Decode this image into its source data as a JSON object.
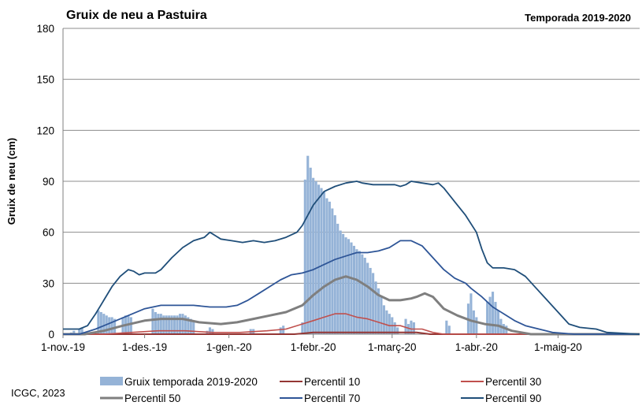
{
  "title": "Gruix de neu a Pastuira",
  "season": "Temporada 2019-2020",
  "credit": "ICGC, 2023",
  "chart_data": {
    "type": "bar",
    "title": "Gruix de neu a Pastuira",
    "subtitle": "Temporada 2019-2020",
    "ylabel": "Gruix de neu (cm)",
    "xlabel": "",
    "ylim": [
      0,
      180
    ],
    "yticks": [
      0,
      30,
      60,
      90,
      120,
      150,
      180
    ],
    "xlim_days": [
      0,
      212
    ],
    "xticks": [
      {
        "day": 0,
        "label": "1-nov.-19"
      },
      {
        "day": 30,
        "label": "1-des.-19"
      },
      {
        "day": 61,
        "label": "1-gen.-20"
      },
      {
        "day": 92,
        "label": "1-febr.-20"
      },
      {
        "day": 121,
        "label": "1-març-20"
      },
      {
        "day": 152,
        "label": "1-abr.-20"
      },
      {
        "day": 182,
        "label": "1-maig-20"
      }
    ],
    "grid": "horizontal",
    "legend_position": "bottom",
    "colors": {
      "bars": "#95b3d7",
      "p10": "#943634",
      "p30": "#c0504d",
      "p50": "#7f7f7f",
      "p70": "#2e5597",
      "p90": "#1f4e79"
    },
    "legend": [
      {
        "label": "Gruix temporada 2019-2020",
        "key": "bars"
      },
      {
        "label": "Percentil 10",
        "key": "p10"
      },
      {
        "label": "Percentil 30",
        "key": "p30"
      },
      {
        "label": "Percentil 50",
        "key": "p50"
      },
      {
        "label": "Percentil 70",
        "key": "p70"
      },
      {
        "label": "Percentil 90",
        "key": "p90"
      }
    ],
    "bars": [
      {
        "day": 3,
        "value": 1
      },
      {
        "day": 4,
        "value": 2
      },
      {
        "day": 6,
        "value": 3
      },
      {
        "day": 7,
        "value": 4
      },
      {
        "day": 13,
        "value": 14
      },
      {
        "day": 14,
        "value": 13
      },
      {
        "day": 15,
        "value": 12
      },
      {
        "day": 16,
        "value": 11
      },
      {
        "day": 17,
        "value": 10
      },
      {
        "day": 18,
        "value": 10
      },
      {
        "day": 19,
        "value": 9
      },
      {
        "day": 22,
        "value": 10
      },
      {
        "day": 23,
        "value": 11
      },
      {
        "day": 24,
        "value": 11
      },
      {
        "day": 25,
        "value": 10
      },
      {
        "day": 33,
        "value": 15
      },
      {
        "day": 34,
        "value": 13
      },
      {
        "day": 35,
        "value": 12
      },
      {
        "day": 36,
        "value": 12
      },
      {
        "day": 37,
        "value": 11
      },
      {
        "day": 38,
        "value": 11
      },
      {
        "day": 39,
        "value": 11
      },
      {
        "day": 40,
        "value": 11
      },
      {
        "day": 41,
        "value": 11
      },
      {
        "day": 42,
        "value": 11
      },
      {
        "day": 43,
        "value": 12
      },
      {
        "day": 44,
        "value": 12
      },
      {
        "day": 45,
        "value": 11
      },
      {
        "day": 46,
        "value": 10
      },
      {
        "day": 47,
        "value": 9
      },
      {
        "day": 48,
        "value": 8
      },
      {
        "day": 53,
        "value": 2
      },
      {
        "day": 54,
        "value": 4
      },
      {
        "day": 55,
        "value": 3
      },
      {
        "day": 69,
        "value": 3
      },
      {
        "day": 70,
        "value": 3
      },
      {
        "day": 80,
        "value": 4
      },
      {
        "day": 81,
        "value": 5
      },
      {
        "day": 88,
        "value": 7
      },
      {
        "day": 89,
        "value": 91
      },
      {
        "day": 90,
        "value": 105
      },
      {
        "day": 91,
        "value": 98
      },
      {
        "day": 92,
        "value": 92
      },
      {
        "day": 93,
        "value": 90
      },
      {
        "day": 94,
        "value": 88
      },
      {
        "day": 95,
        "value": 86
      },
      {
        "day": 96,
        "value": 84
      },
      {
        "day": 97,
        "value": 80
      },
      {
        "day": 98,
        "value": 78
      },
      {
        "day": 99,
        "value": 74
      },
      {
        "day": 100,
        "value": 70
      },
      {
        "day": 101,
        "value": 65
      },
      {
        "day": 102,
        "value": 61
      },
      {
        "day": 103,
        "value": 59
      },
      {
        "day": 104,
        "value": 57
      },
      {
        "day": 105,
        "value": 56
      },
      {
        "day": 106,
        "value": 54
      },
      {
        "day": 107,
        "value": 52
      },
      {
        "day": 108,
        "value": 50
      },
      {
        "day": 109,
        "value": 49
      },
      {
        "day": 110,
        "value": 47
      },
      {
        "day": 111,
        "value": 45
      },
      {
        "day": 112,
        "value": 42
      },
      {
        "day": 113,
        "value": 39
      },
      {
        "day": 114,
        "value": 36
      },
      {
        "day": 115,
        "value": 31
      },
      {
        "day": 116,
        "value": 27
      },
      {
        "day": 117,
        "value": 22
      },
      {
        "day": 118,
        "value": 17
      },
      {
        "day": 119,
        "value": 14
      },
      {
        "day": 120,
        "value": 12
      },
      {
        "day": 121,
        "value": 10
      },
      {
        "day": 122,
        "value": 7
      },
      {
        "day": 123,
        "value": 4
      },
      {
        "day": 126,
        "value": 9
      },
      {
        "day": 127,
        "value": 6
      },
      {
        "day": 128,
        "value": 8
      },
      {
        "day": 129,
        "value": 7
      },
      {
        "day": 141,
        "value": 8
      },
      {
        "day": 142,
        "value": 5
      },
      {
        "day": 149,
        "value": 18
      },
      {
        "day": 150,
        "value": 24
      },
      {
        "day": 151,
        "value": 14
      },
      {
        "day": 152,
        "value": 10
      },
      {
        "day": 156,
        "value": 19
      },
      {
        "day": 157,
        "value": 22
      },
      {
        "day": 158,
        "value": 25
      },
      {
        "day": 159,
        "value": 19
      },
      {
        "day": 160,
        "value": 14
      },
      {
        "day": 161,
        "value": 9
      },
      {
        "day": 162,
        "value": 6
      },
      {
        "day": 163,
        "value": 5
      }
    ],
    "series": [
      {
        "key": "p10",
        "name": "Percentil 10",
        "points": [
          [
            0,
            0
          ],
          [
            85,
            0
          ],
          [
            92,
            1
          ],
          [
            100,
            1
          ],
          [
            110,
            1
          ],
          [
            120,
            1
          ],
          [
            130,
            1
          ],
          [
            135,
            0
          ],
          [
            212,
            0
          ]
        ]
      },
      {
        "key": "p30",
        "name": "Percentil 30",
        "points": [
          [
            0,
            0
          ],
          [
            15,
            0
          ],
          [
            25,
            1
          ],
          [
            35,
            2
          ],
          [
            45,
            2
          ],
          [
            55,
            1
          ],
          [
            65,
            1
          ],
          [
            75,
            2
          ],
          [
            82,
            3
          ],
          [
            88,
            6
          ],
          [
            92,
            8
          ],
          [
            96,
            10
          ],
          [
            100,
            12
          ],
          [
            104,
            12
          ],
          [
            108,
            10
          ],
          [
            112,
            9
          ],
          [
            116,
            7
          ],
          [
            120,
            5
          ],
          [
            124,
            5
          ],
          [
            128,
            3
          ],
          [
            132,
            3
          ],
          [
            136,
            1
          ],
          [
            140,
            0
          ],
          [
            212,
            0
          ]
        ]
      },
      {
        "key": "p50",
        "name": "Percentil 50",
        "points": [
          [
            0,
            0
          ],
          [
            8,
            0
          ],
          [
            15,
            2
          ],
          [
            22,
            5
          ],
          [
            30,
            8
          ],
          [
            36,
            9
          ],
          [
            44,
            9
          ],
          [
            50,
            7
          ],
          [
            58,
            6
          ],
          [
            64,
            7
          ],
          [
            70,
            9
          ],
          [
            76,
            11
          ],
          [
            82,
            13
          ],
          [
            88,
            17
          ],
          [
            92,
            23
          ],
          [
            96,
            28
          ],
          [
            100,
            32
          ],
          [
            104,
            34
          ],
          [
            108,
            32
          ],
          [
            112,
            28
          ],
          [
            116,
            23
          ],
          [
            120,
            20
          ],
          [
            124,
            20
          ],
          [
            128,
            21
          ],
          [
            130,
            22
          ],
          [
            133,
            24
          ],
          [
            136,
            22
          ],
          [
            140,
            15
          ],
          [
            145,
            11
          ],
          [
            150,
            8
          ],
          [
            155,
            6
          ],
          [
            160,
            5
          ],
          [
            165,
            2
          ],
          [
            172,
            0
          ],
          [
            212,
            0
          ]
        ]
      },
      {
        "key": "p70",
        "name": "Percentil 70",
        "points": [
          [
            0,
            0
          ],
          [
            6,
            0
          ],
          [
            12,
            3
          ],
          [
            18,
            7
          ],
          [
            24,
            11
          ],
          [
            30,
            15
          ],
          [
            36,
            17
          ],
          [
            42,
            17
          ],
          [
            48,
            17
          ],
          [
            54,
            16
          ],
          [
            60,
            16
          ],
          [
            64,
            17
          ],
          [
            68,
            20
          ],
          [
            72,
            24
          ],
          [
            76,
            28
          ],
          [
            80,
            32
          ],
          [
            84,
            35
          ],
          [
            88,
            36
          ],
          [
            92,
            38
          ],
          [
            96,
            41
          ],
          [
            100,
            44
          ],
          [
            104,
            46
          ],
          [
            108,
            48
          ],
          [
            112,
            48
          ],
          [
            116,
            49
          ],
          [
            120,
            51
          ],
          [
            124,
            55
          ],
          [
            128,
            55
          ],
          [
            132,
            52
          ],
          [
            136,
            45
          ],
          [
            140,
            38
          ],
          [
            144,
            33
          ],
          [
            148,
            30
          ],
          [
            150,
            27
          ],
          [
            154,
            22
          ],
          [
            158,
            16
          ],
          [
            162,
            12
          ],
          [
            166,
            8
          ],
          [
            170,
            5
          ],
          [
            175,
            3
          ],
          [
            180,
            1
          ],
          [
            188,
            0
          ],
          [
            212,
            0
          ]
        ]
      },
      {
        "key": "p90",
        "name": "Percentil 90",
        "points": [
          [
            0,
            3
          ],
          [
            3,
            3
          ],
          [
            6,
            3
          ],
          [
            9,
            5
          ],
          [
            12,
            12
          ],
          [
            15,
            20
          ],
          [
            18,
            28
          ],
          [
            21,
            34
          ],
          [
            24,
            38
          ],
          [
            26,
            37
          ],
          [
            28,
            35
          ],
          [
            30,
            36
          ],
          [
            34,
            36
          ],
          [
            36,
            38
          ],
          [
            40,
            45
          ],
          [
            44,
            51
          ],
          [
            48,
            55
          ],
          [
            52,
            57
          ],
          [
            54,
            60
          ],
          [
            56,
            58
          ],
          [
            58,
            56
          ],
          [
            62,
            55
          ],
          [
            66,
            54
          ],
          [
            70,
            55
          ],
          [
            74,
            54
          ],
          [
            78,
            55
          ],
          [
            82,
            57
          ],
          [
            86,
            60
          ],
          [
            88,
            64
          ],
          [
            92,
            76
          ],
          [
            96,
            84
          ],
          [
            100,
            87
          ],
          [
            104,
            89
          ],
          [
            108,
            90
          ],
          [
            110,
            89
          ],
          [
            114,
            88
          ],
          [
            118,
            88
          ],
          [
            122,
            88
          ],
          [
            124,
            87
          ],
          [
            126,
            88
          ],
          [
            128,
            90
          ],
          [
            132,
            89
          ],
          [
            136,
            88
          ],
          [
            138,
            89
          ],
          [
            140,
            86
          ],
          [
            144,
            78
          ],
          [
            148,
            70
          ],
          [
            152,
            60
          ],
          [
            154,
            50
          ],
          [
            156,
            42
          ],
          [
            158,
            39
          ],
          [
            162,
            39
          ],
          [
            166,
            38
          ],
          [
            170,
            34
          ],
          [
            174,
            27
          ],
          [
            178,
            20
          ],
          [
            182,
            13
          ],
          [
            186,
            6
          ],
          [
            190,
            4
          ],
          [
            196,
            3
          ],
          [
            200,
            1
          ],
          [
            212,
            0
          ]
        ]
      }
    ]
  }
}
